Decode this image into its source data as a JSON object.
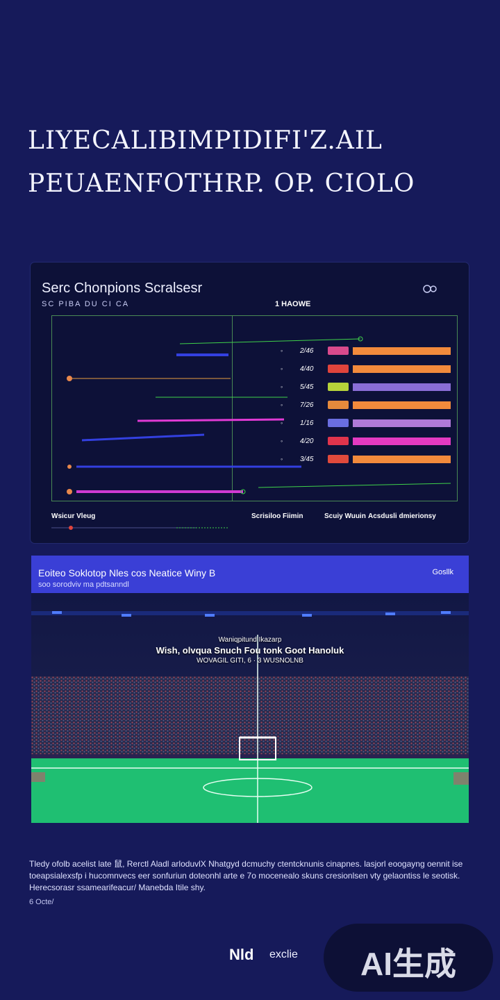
{
  "headline": {
    "line1": "LIYECALIBIMPIDIFI'Z.AIL",
    "line2": "PEUAENFOTHRP. OP. CIOLO"
  },
  "card": {
    "title": "Serc Chonpions Scralsesr",
    "subtitle": "SC PIBA DU CI CA",
    "tag": "1  HAOWE",
    "rows": [
      {
        "pct": "2/46",
        "value": 0.8,
        "badge_color": "#d94a8c",
        "fill_color": "#f28a3c"
      },
      {
        "pct": "4/40",
        "value": 0.8,
        "badge_color": "#e0443c",
        "fill_color": "#f28a3c"
      },
      {
        "pct": "5/45",
        "value": 0.8,
        "badge_color": "#b6d23a",
        "fill_color": "#8a6ed6"
      },
      {
        "pct": "7/26",
        "value": 0.8,
        "badge_color": "#e58a3c",
        "fill_color": "#f28a3c"
      },
      {
        "pct": "1/16",
        "value": 0.8,
        "badge_color": "#6a6ee0",
        "fill_color": "#b07ad8"
      },
      {
        "pct": "4/20",
        "value": 0.8,
        "badge_color": "#e0344c",
        "fill_color": "#e43ac2"
      },
      {
        "pct": "3/45",
        "value": 0.8,
        "badge_color": "#e04a3c",
        "fill_color": "#f28a3c"
      }
    ],
    "legend": {
      "left": "Wsicur Vleug",
      "mid": "Scrisiloo Fiimin",
      "right1": "Scuiy Wuuin",
      "right2": "Acsdusli dmierionsy"
    }
  },
  "banner": {
    "title": "Eoiteo Soklotop Nles cos Neatice Winy B",
    "subtitle": "soo sorodviv ma pdtsanndl",
    "action": "Gosllk"
  },
  "stadium": {
    "caption_top": "Waniqpitund Ikazarp",
    "caption_main": "Wish, olvqua Snuch Fou tonk Goot Hanoluk",
    "caption_sub": "WOVAGIL GITI,    6 · 3  WUSNOLNB"
  },
  "description": {
    "text": "Tledy ofolb acelist late 鼠, Rerctl Aladl arloduvlX Nhatgyd dcmuchy ctentcknunis cinapnes. lasjorl eoogayng oennit ise toeapsialexsfp i hucomnvecs eer sonfuriun doteonhl arte e 7o mocenealo skuns cresionlsen vty gelaontiss le seotisk. Herecsorasr ssamearifeacur/ Manebda Itile shy.",
    "meta": "6 Octe/"
  },
  "footer": {
    "brand": "Nld",
    "sub": "exclie",
    "ai_badge": "AI生成"
  }
}
